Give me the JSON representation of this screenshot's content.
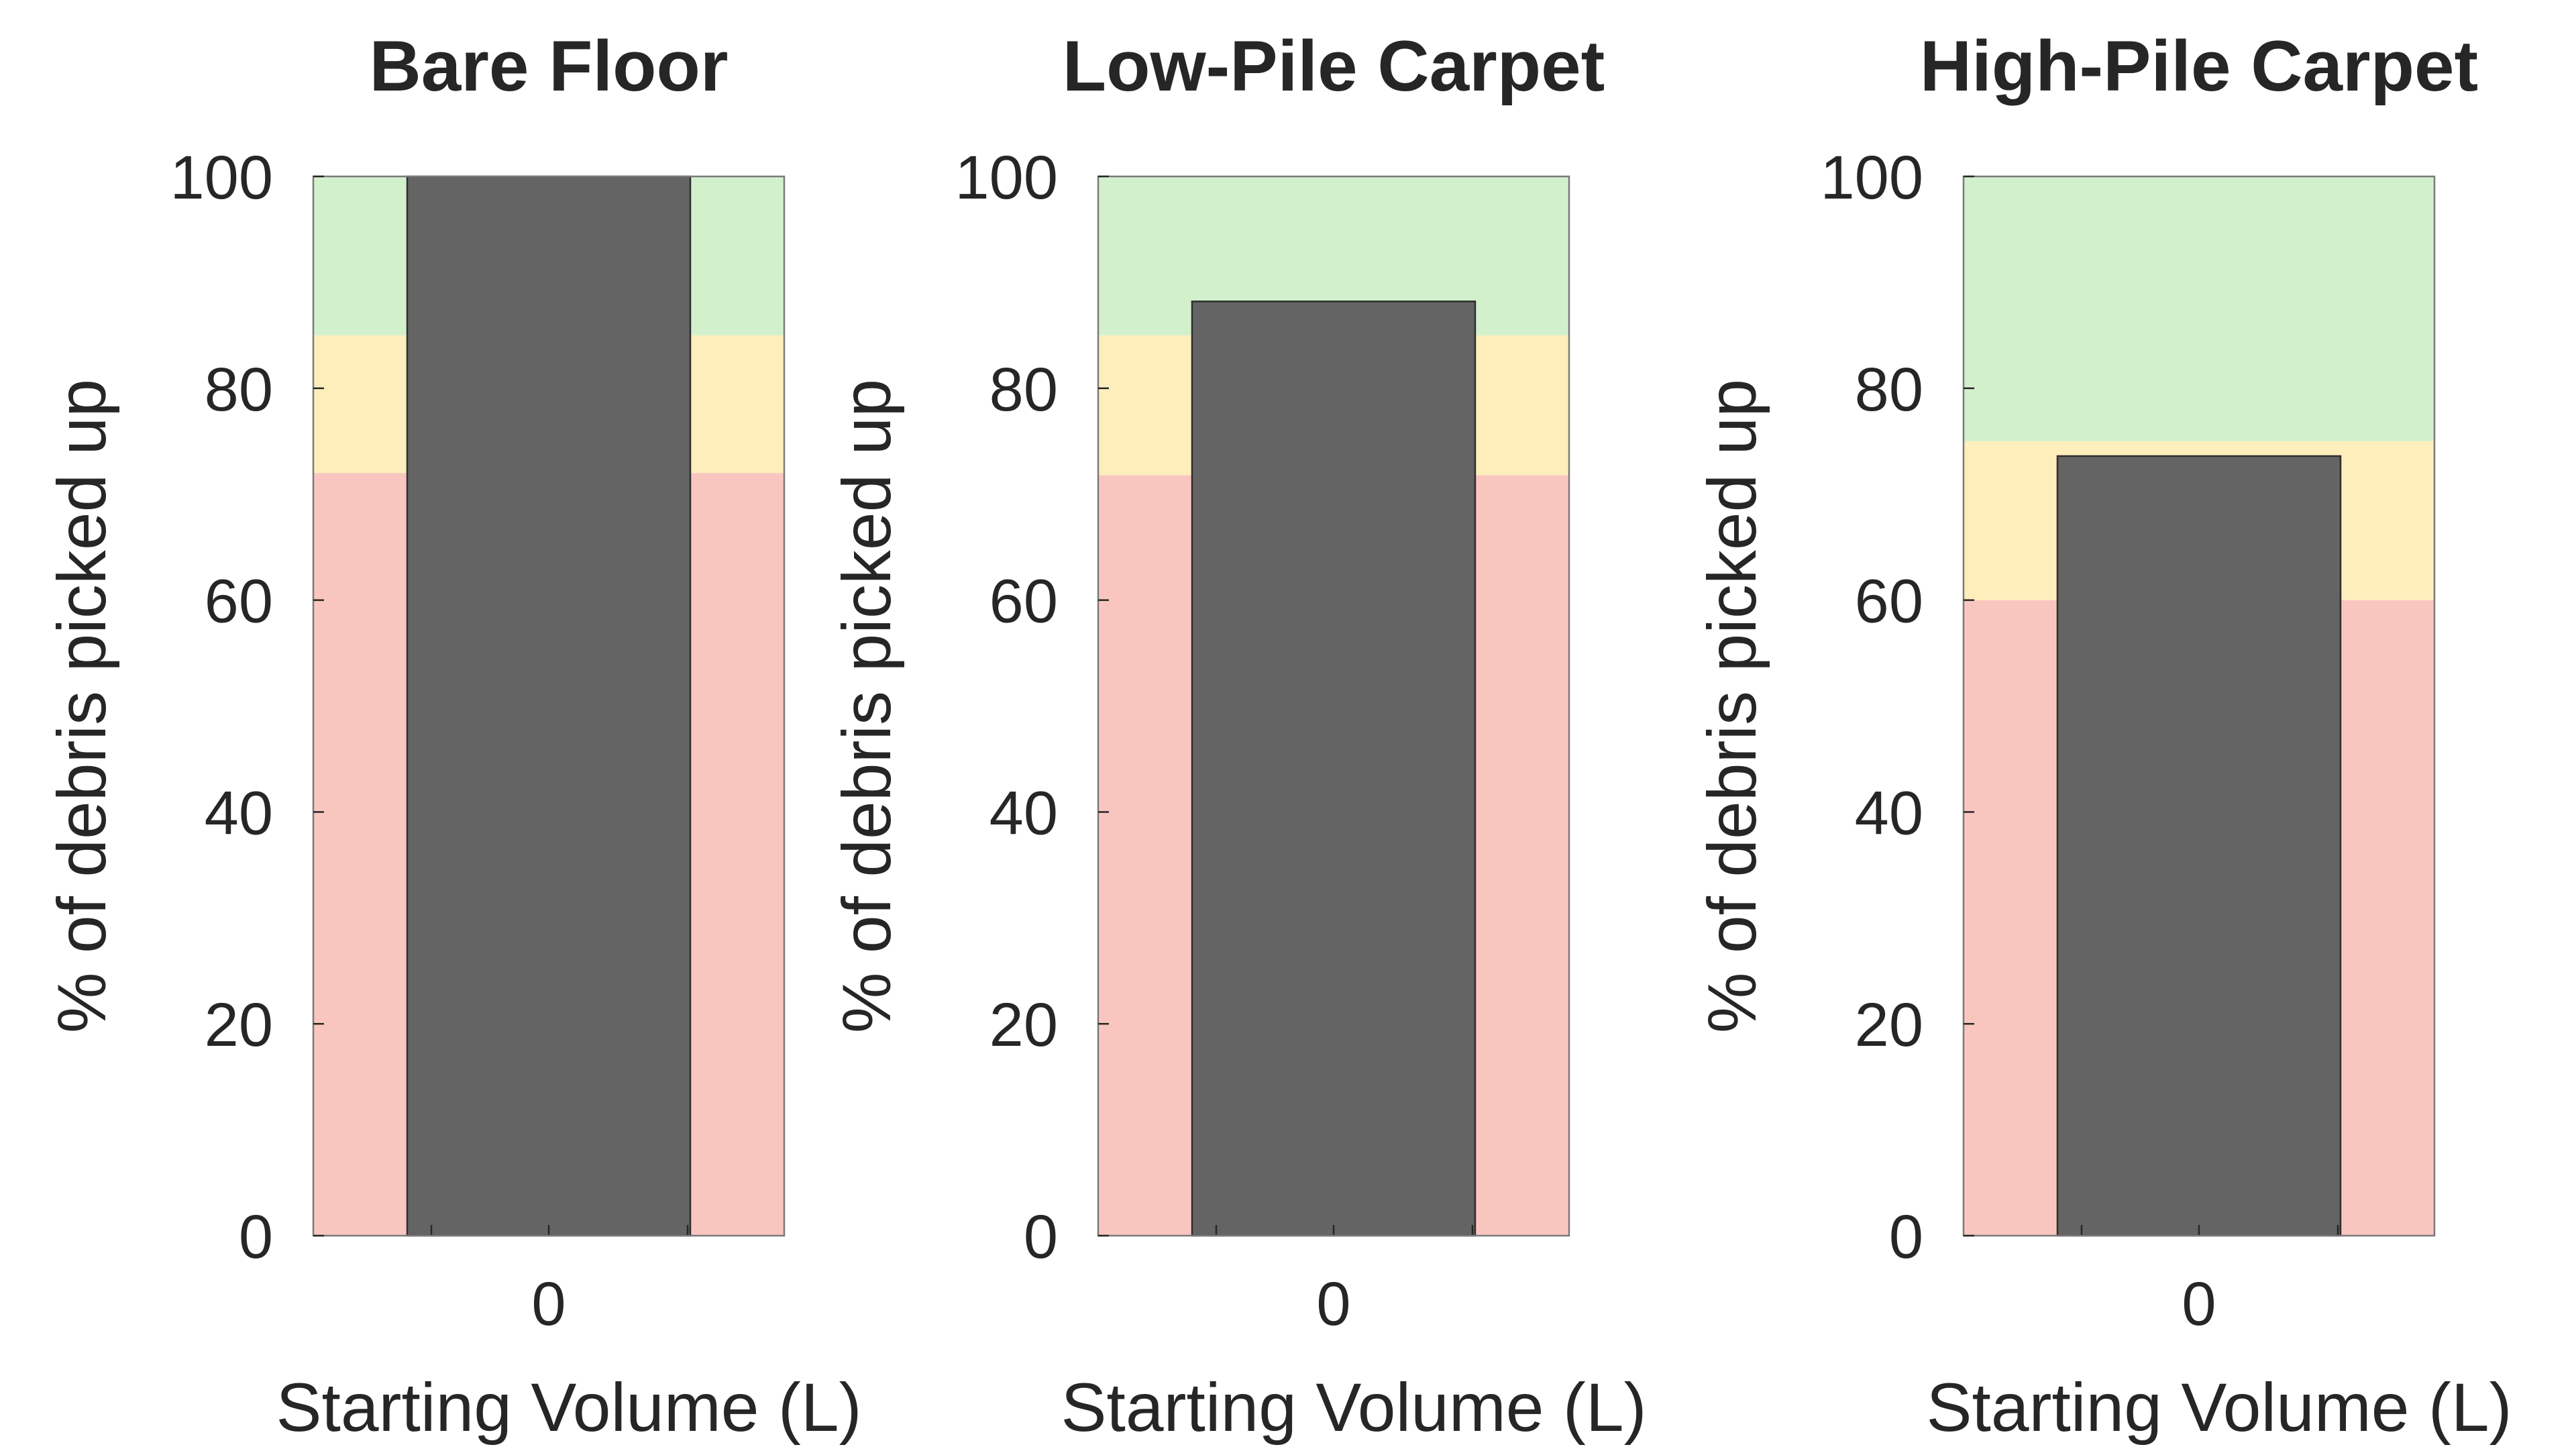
{
  "chart_data": [
    {
      "type": "bar",
      "title": "Bare Floor",
      "xlabel": "Starting Volume (L)",
      "ylabel": "% of debris picked up",
      "categories": [
        "0"
      ],
      "values": [
        100
      ],
      "ylim": [
        0,
        100
      ],
      "yticks": [
        "0",
        "20",
        "40",
        "60",
        "80",
        "100"
      ],
      "bands": [
        {
          "from": 0,
          "to": 72,
          "color": "#f9c6bf"
        },
        {
          "from": 72,
          "to": 85,
          "color": "#fdeebb"
        },
        {
          "from": 85,
          "to": 100,
          "color": "#d2f0cc"
        }
      ],
      "bar_color": "#646464",
      "grid": false
    },
    {
      "type": "bar",
      "title": "Low-Pile Carpet",
      "xlabel": "Starting Volume (L)",
      "ylabel": "% of debris picked up",
      "categories": [
        "0"
      ],
      "values": [
        88.2
      ],
      "ylim": [
        0,
        100
      ],
      "yticks": [
        "0",
        "20",
        "40",
        "60",
        "80",
        "100"
      ],
      "bands": [
        {
          "from": 0,
          "to": 71.8,
          "color": "#f9c6bf"
        },
        {
          "from": 71.8,
          "to": 85,
          "color": "#fdeebb"
        },
        {
          "from": 85,
          "to": 100,
          "color": "#d2f0cc"
        }
      ],
      "bar_color": "#646464",
      "grid": false
    },
    {
      "type": "bar",
      "title": "High-Pile Carpet",
      "xlabel": "Starting Volume (L)",
      "ylabel": "% of debris picked up",
      "categories": [
        "0"
      ],
      "values": [
        73.6
      ],
      "ylim": [
        0,
        100
      ],
      "yticks": [
        "0",
        "20",
        "40",
        "60",
        "80",
        "100"
      ],
      "bands": [
        {
          "from": 0,
          "to": 60,
          "color": "#f9c6bf"
        },
        {
          "from": 60,
          "to": 75,
          "color": "#fdeebb"
        },
        {
          "from": 75,
          "to": 100,
          "color": "#d2f0cc"
        }
      ],
      "bar_color": "#646464",
      "grid": false
    }
  ]
}
